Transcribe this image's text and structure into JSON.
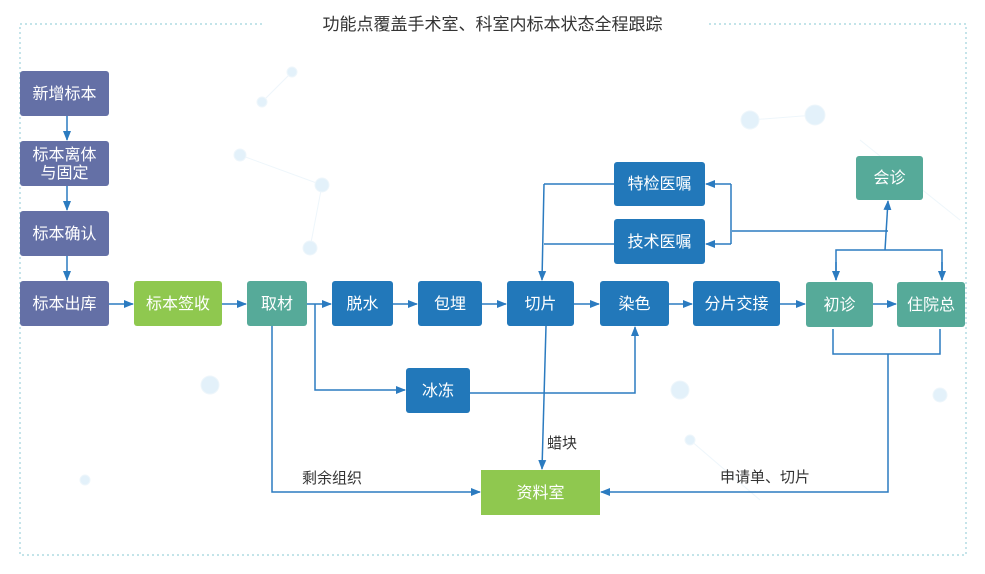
{
  "title": "功能点覆盖手术室、科室内标本状态全程跟踪",
  "colors": {
    "purple": "#6470a6",
    "green": "#8fc84f",
    "teal": "#56aa99",
    "blue": "#2278ba",
    "line": "#2b7bc0"
  },
  "nodes": {
    "new_specimen": "新增标本",
    "isolation_fixation": "标本离体与固定",
    "confirm": "标本确认",
    "outbound": "标本出库",
    "signoff": "标本签收",
    "grossing": "取材",
    "dehydration": "脱水",
    "embedding": "包埋",
    "sectioning": "切片",
    "staining": "染色",
    "slide_handover": "分片交接",
    "initial_diagnosis": "初诊",
    "chief_resident": "住院总",
    "special_order": "特检医嘱",
    "tech_order": "技术医嘱",
    "consultation": "会诊",
    "frozen": "冰冻",
    "archive": "资料室"
  },
  "edge_labels": {
    "remaining_tissue": "剩余组织",
    "wax_block": "蜡块",
    "request_slides": "申请单、切片"
  }
}
